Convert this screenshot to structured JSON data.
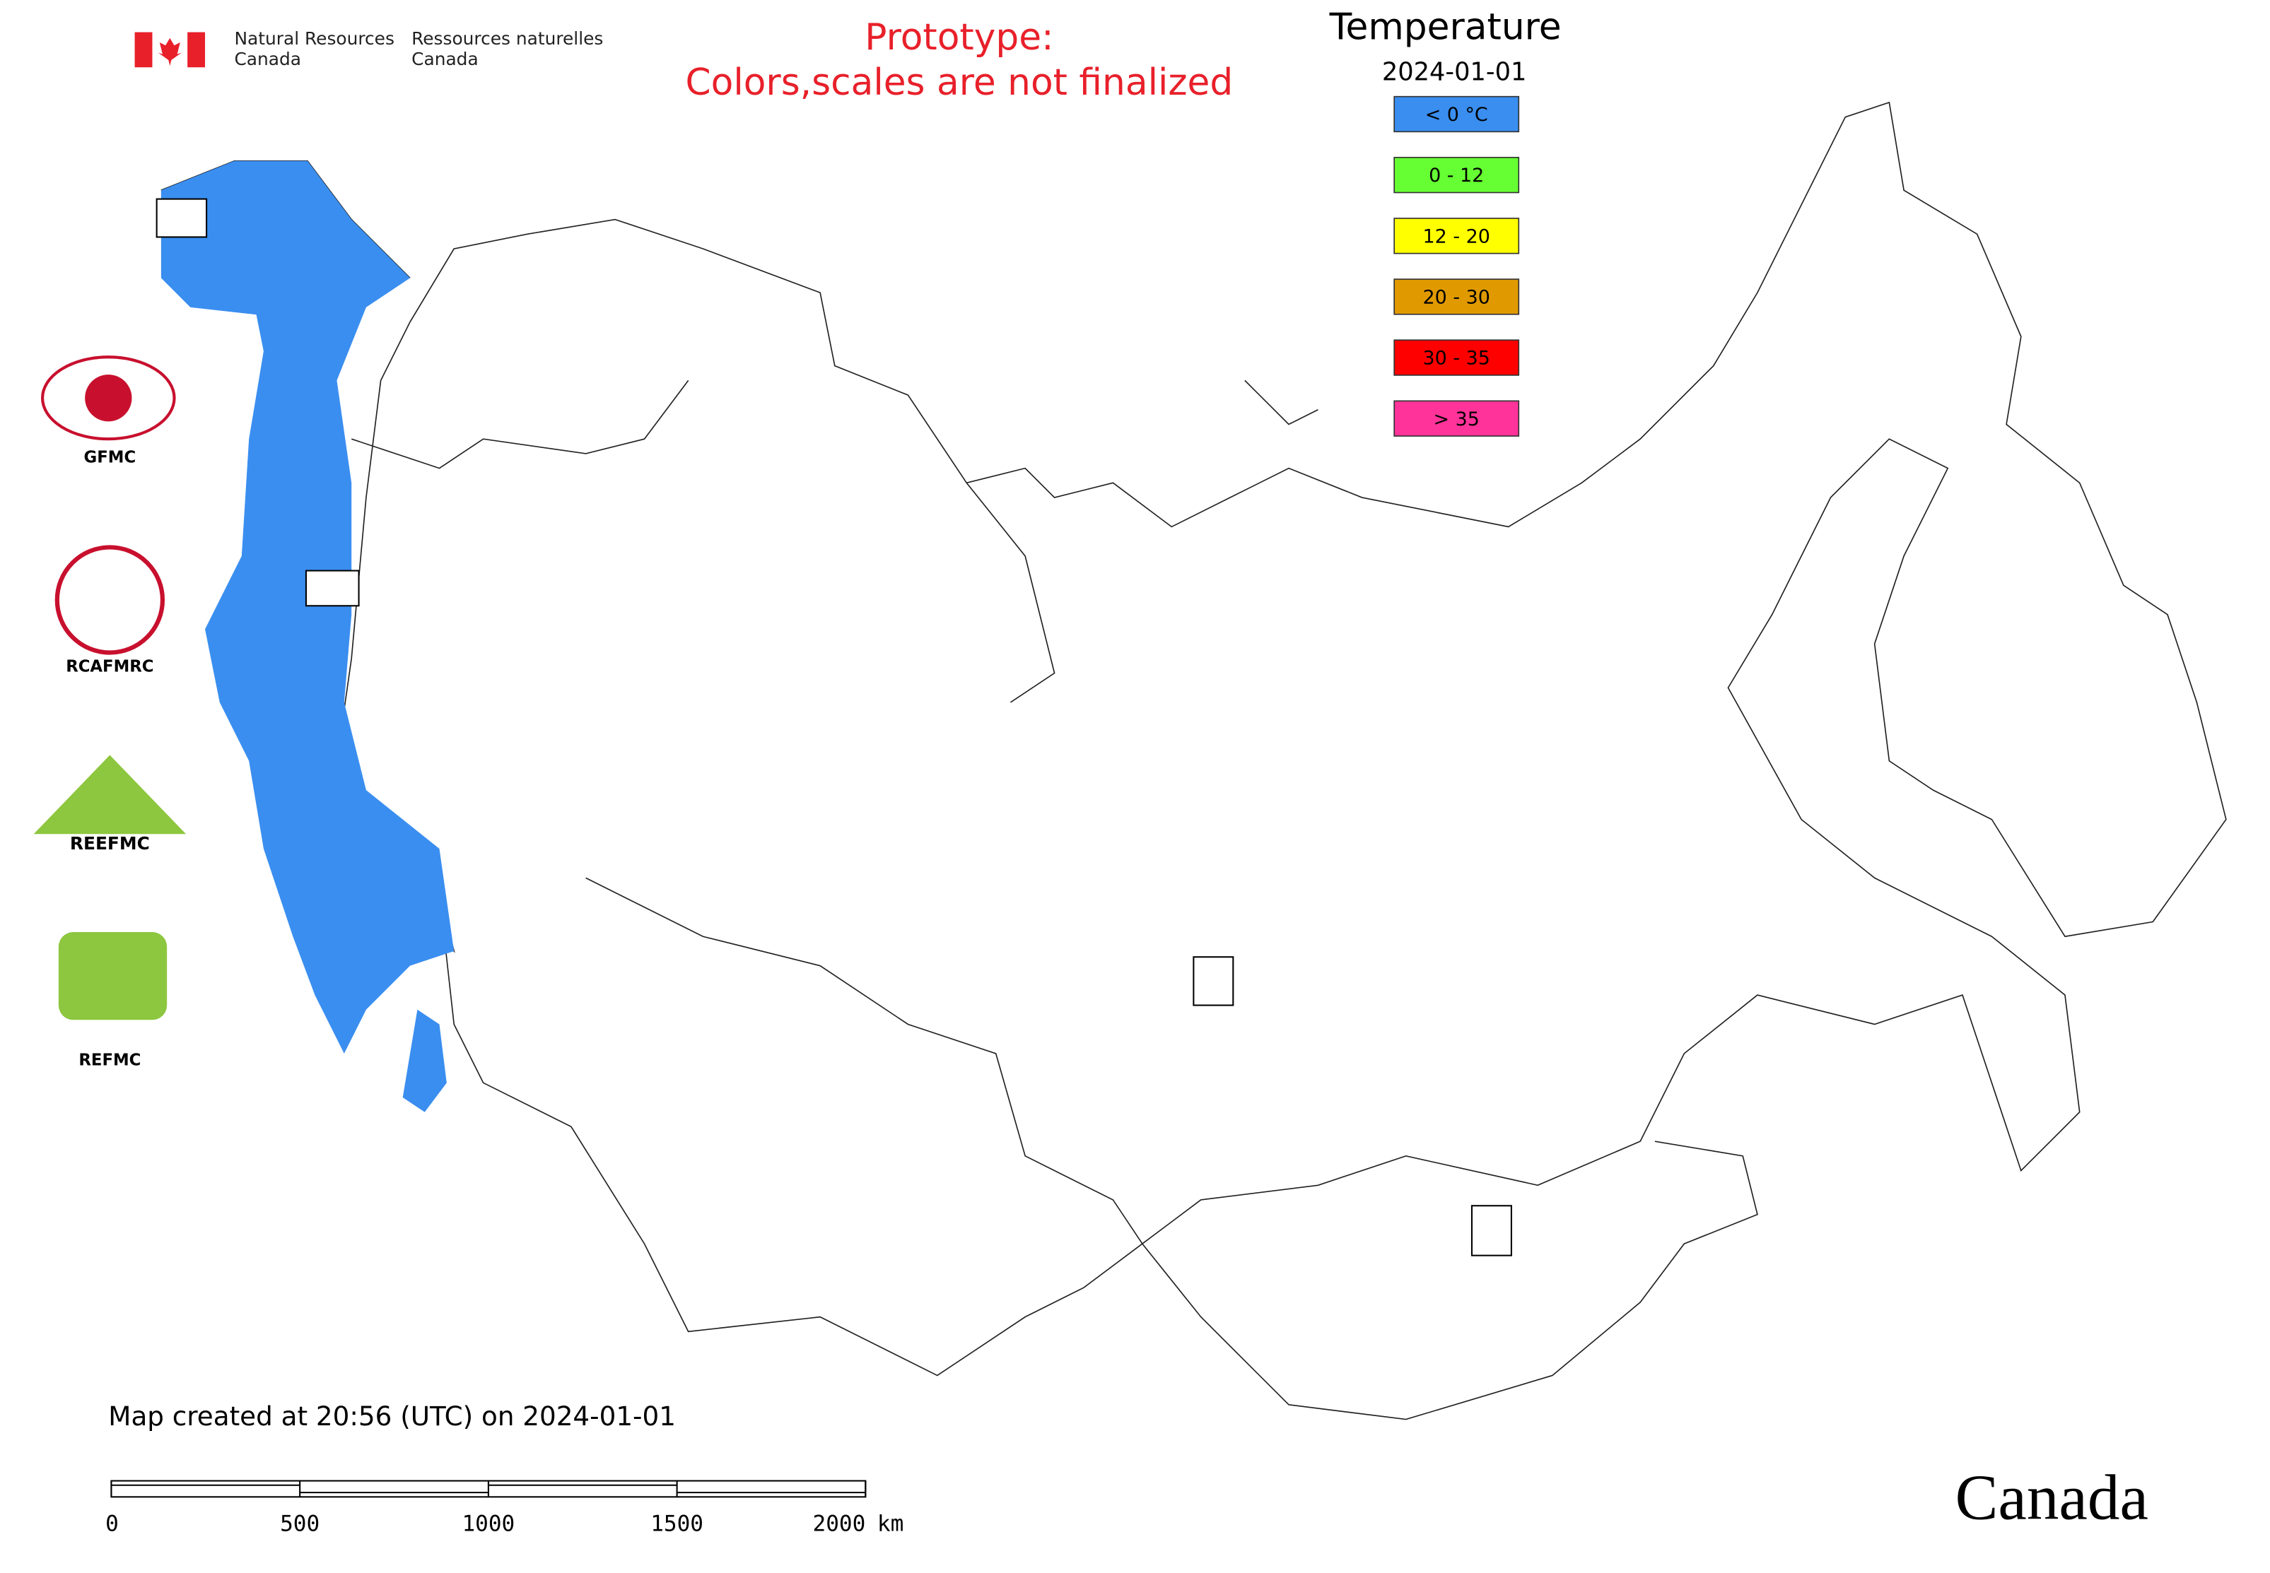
{
  "header": {
    "en_line1": "Natural Resources",
    "en_line2": "Canada",
    "fr_line1": "Ressources naturelles",
    "fr_line2": "Canada"
  },
  "notice": {
    "line1": "Prototype:",
    "line2": "Colors,scales are not finalized"
  },
  "legend": {
    "title": "Temperature",
    "date": "2024-01-01",
    "items": [
      {
        "label": "< 0 °C",
        "color": "#3a8ef0"
      },
      {
        "label": "0 - 12",
        "color": "#66ff33"
      },
      {
        "label": "12 - 20",
        "color": "#ffff00"
      },
      {
        "label": "20 - 30",
        "color": "#e09a00"
      },
      {
        "label": "30 - 35",
        "color": "#ff0000"
      },
      {
        "label": "> 35",
        "color": "#ff3399"
      }
    ]
  },
  "partners": [
    "GFMC",
    "RCAFMRC",
    "REEFMC",
    "REFMC"
  ],
  "footer": {
    "map_created": "Map created at 20:56 (UTC) on 2024-01-01",
    "wordmark": "Canada"
  },
  "scale_bar": {
    "ticks": [
      0,
      500,
      1000,
      1500,
      2000
    ],
    "unit": "km"
  }
}
